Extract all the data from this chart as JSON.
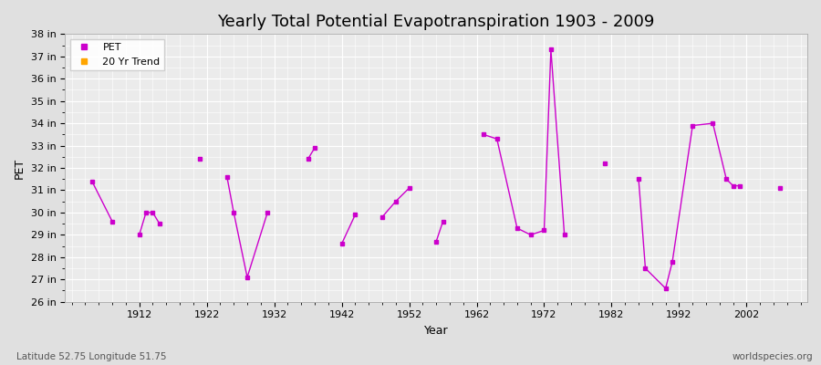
{
  "title": "Yearly Total Potential Evapotranspiration 1903 - 2009",
  "xlabel": "Year",
  "ylabel": "PET",
  "bottom_left": "Latitude 52.75 Longitude 51.75",
  "bottom_right": "worldspecies.org",
  "ylim": [
    26,
    38
  ],
  "yticks": [
    26,
    27,
    28,
    29,
    30,
    31,
    32,
    33,
    34,
    35,
    36,
    37,
    38
  ],
  "ytick_labels": [
    "26 in",
    "27 in",
    "28 in",
    "29 in",
    "30 in",
    "31 in",
    "32 in",
    "33 in",
    "34 in",
    "35 in",
    "36 in",
    "37 in",
    "38 in"
  ],
  "xlim": [
    1901,
    2011
  ],
  "pet_color": "#cc00cc",
  "trend_color": "#ffa500",
  "background_color": "#e0e0e0",
  "plot_bg_color": "#ebebeb",
  "grid_color": "#ffffff",
  "pet_data": [
    [
      1905,
      31.4
    ],
    [
      1908,
      29.6
    ],
    [
      1912,
      29.0
    ],
    [
      1913,
      30.0
    ],
    [
      1914,
      30.0
    ],
    [
      1915,
      29.5
    ],
    [
      1921,
      32.4
    ],
    [
      1925,
      31.6
    ],
    [
      1926,
      30.0
    ],
    [
      1928,
      27.1
    ],
    [
      1931,
      30.0
    ],
    [
      1937,
      32.4
    ],
    [
      1938,
      32.9
    ],
    [
      1942,
      28.6
    ],
    [
      1944,
      29.9
    ],
    [
      1948,
      29.8
    ],
    [
      1950,
      30.5
    ],
    [
      1952,
      31.1
    ],
    [
      1956,
      28.7
    ],
    [
      1957,
      29.6
    ],
    [
      1963,
      33.5
    ],
    [
      1965,
      33.3
    ],
    [
      1968,
      29.3
    ],
    [
      1970,
      29.0
    ],
    [
      1972,
      29.2
    ],
    [
      1973,
      37.3
    ],
    [
      1975,
      29.0
    ],
    [
      1981,
      32.2
    ],
    [
      1986,
      31.5
    ],
    [
      1987,
      27.5
    ],
    [
      1990,
      26.6
    ],
    [
      1991,
      27.8
    ],
    [
      1994,
      33.9
    ],
    [
      1997,
      34.0
    ],
    [
      1999,
      31.5
    ],
    [
      2000,
      31.2
    ],
    [
      2001,
      31.2
    ],
    [
      2007,
      31.1
    ]
  ],
  "legend_entries": [
    "PET",
    "20 Yr Trend"
  ],
  "title_fontsize": 13,
  "axis_fontsize": 9,
  "tick_fontsize": 8
}
